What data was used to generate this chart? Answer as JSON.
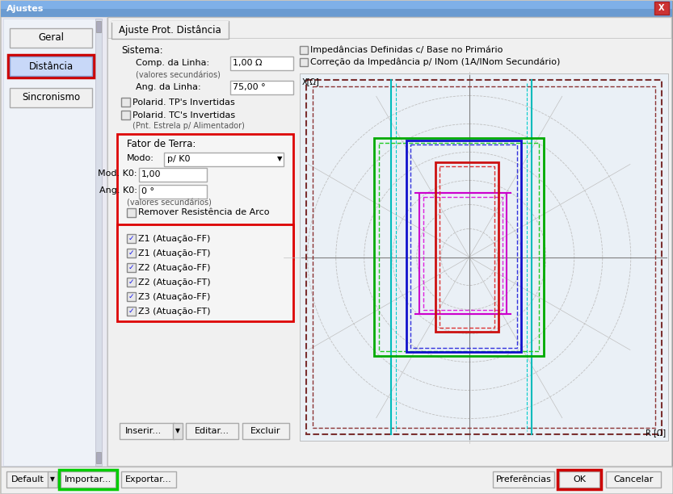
{
  "title_text": "Ajustes",
  "tab_title": "Ajuste Prot. Distância",
  "sistema_label": "Sistema:",
  "comp_label": "Comp. da Linha:",
  "comp_value": "1,00 Ω",
  "valores_sec1": "(valores secundários)",
  "ang_label": "Ang. da Linha:",
  "ang_value": "75,00 °",
  "check1": "Polarid. TP's Invertidas",
  "check2": "Polarid. TC's Invertidas",
  "check2_sub": "(Pnt. Estrela p/ Alimentador)",
  "fator_terra_label": "Fator de Terra:",
  "modo_label": "Modo:",
  "modo_value": "p/ K0",
  "mod_k0_label": "Mod. K0:",
  "mod_k0_value": "1,00",
  "ang_k0_label": "Ang. K0:",
  "ang_k0_value": "0 °",
  "valores_sec2": "(valores secundários)",
  "check_remover": "Remover Resistência de Arco",
  "zone_checks": [
    "Z1 (Atuação-FF)",
    "Z1 (Atuação-FT)",
    "Z2 (Atuação-FF)",
    "Z2 (Atuação-FT)",
    "Z3 (Atuação-FF)",
    "Z3 (Atuação-FT)"
  ],
  "check_imp1": "Impedâncias Definidas c/ Base no Primário",
  "check_imp2": "Correção da Impedância p/ INom (1A/INom Secundário)",
  "x_label": "X[Ω]",
  "r_label": "R [Ω]",
  "btn_inserir": "Inserir...",
  "btn_editar": "Editar...",
  "btn_excluir": "Excluir"
}
